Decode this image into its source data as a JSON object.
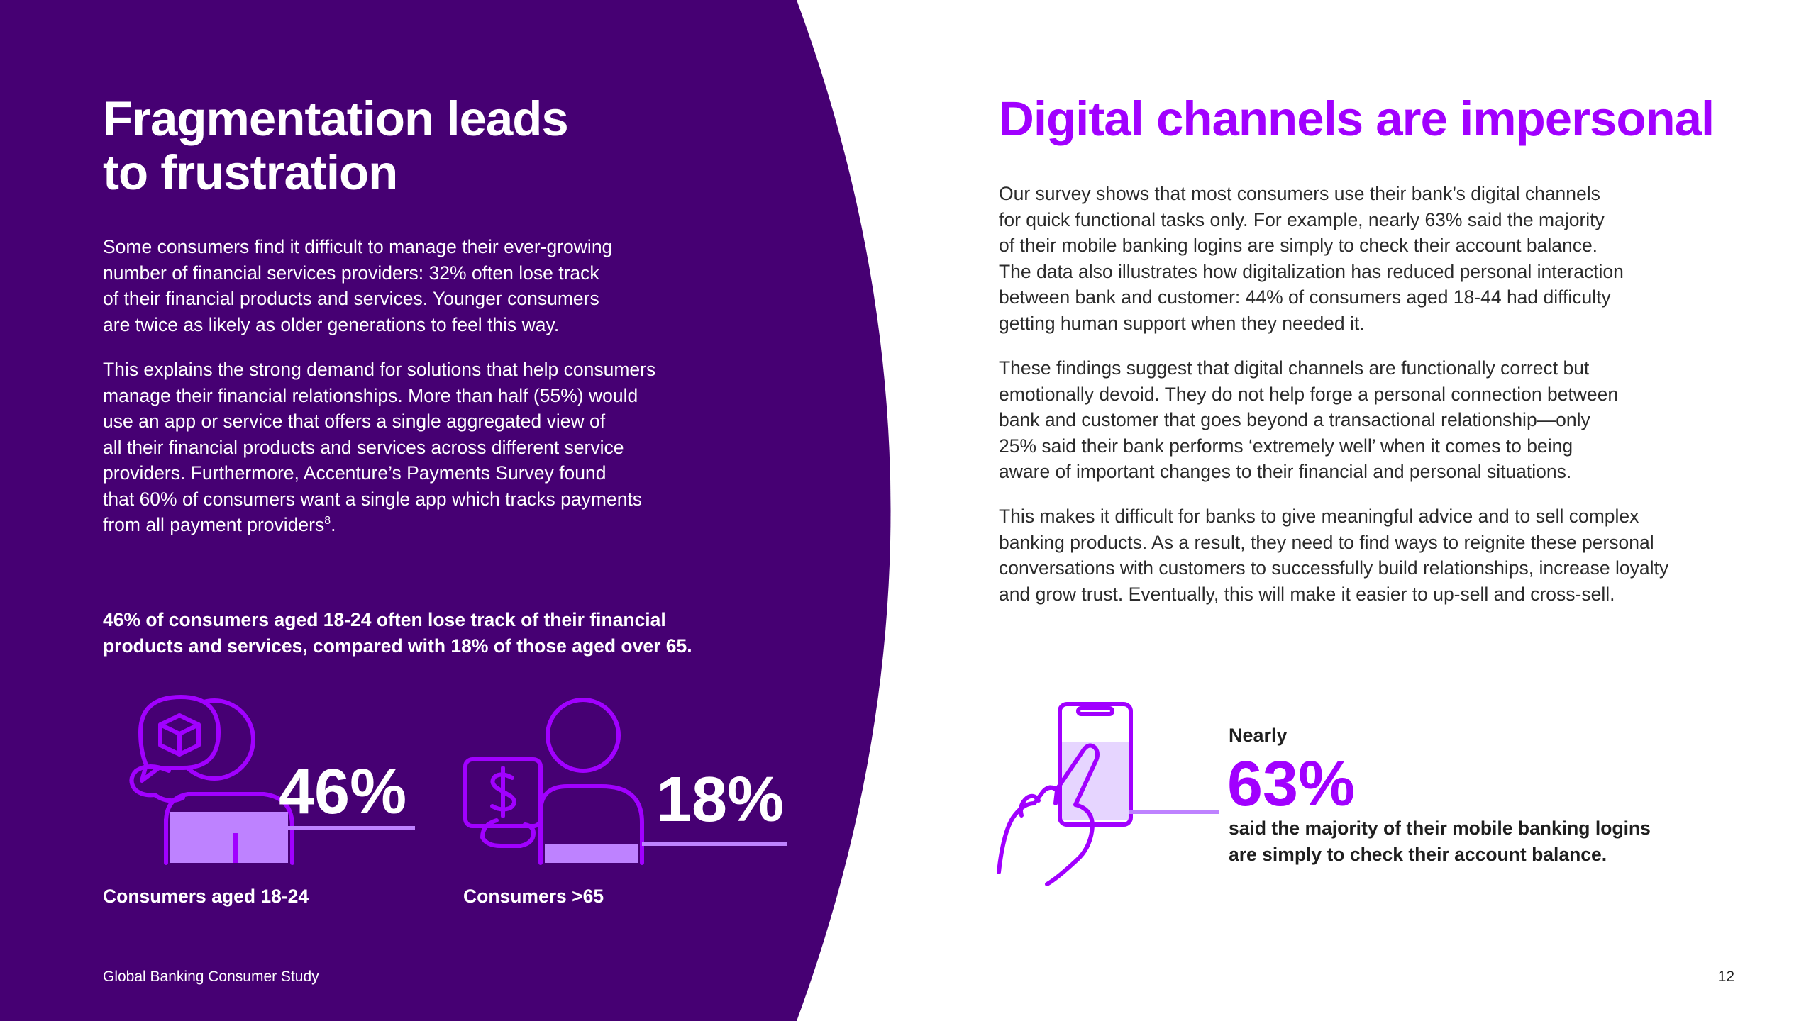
{
  "left": {
    "title_line1": "Fragmentation leads",
    "title_line2": "to frustration",
    "para1_lines": [
      "Some consumers find it difficult to manage their ever-growing",
      "number of financial services providers: 32% often lose track",
      "of their financial products and services. Younger consumers",
      "are twice as likely as older generations to feel this way."
    ],
    "para2_lines": [
      "This explains the strong demand for solutions that help consumers",
      "manage their financial relationships. More than half (55%) would",
      "use an app or service that offers a single aggregated view of",
      "all their financial products and services across different service",
      "providers. Furthermore, Accenture’s Payments Survey found",
      "that 60% of consumers want a single app which tracks payments",
      "from all payment providers"
    ],
    "para2_footnote": "8",
    "para2_end": ".",
    "highlight_lines": [
      "46% of consumers aged 18-24 often lose track of their financial",
      "products and services, compared with 18% of those aged over 65."
    ],
    "stats": [
      {
        "value": "46%",
        "fill_fraction": 0.46,
        "label": "Consumers aged 18-24",
        "icon": "person-with-package-icon"
      },
      {
        "value": "18%",
        "fill_fraction": 0.18,
        "label": "Consumers >65",
        "icon": "person-with-dollar-icon"
      }
    ],
    "footer": "Global Banking Consumer Study"
  },
  "right": {
    "title": "Digital channels are impersonal",
    "para1_lines": [
      "Our survey shows that most consumers use their bank’s digital channels",
      "for quick functional tasks only. For example, nearly 63% said the majority",
      "of their mobile banking logins are simply to check their account balance.",
      "The data also illustrates how digitalization has reduced personal interaction",
      "between bank and customer: 44% of consumers aged 18-44 had difficulty",
      "getting human support when they needed it."
    ],
    "para2_lines": [
      "These findings suggest that digital channels are functionally correct but",
      "emotionally devoid. They do not help forge a personal connection between",
      "bank and customer that goes beyond a transactional relationship—only",
      "25% said their bank performs ‘extremely well’ when it comes to being",
      "aware of important changes to their financial and personal situations."
    ],
    "para3_lines": [
      "This makes it difficult for banks to give meaningful advice and to sell complex",
      "banking products. As a result, they need to find ways to reignite these personal",
      "conversations with customers to successfully build relationships, increase loyalty",
      "and grow trust. Eventually, this will make it easier to up-sell and cross-sell."
    ],
    "stat": {
      "prefix": "Nearly",
      "value": "63%",
      "fill_fraction": 0.63,
      "desc_lines": [
        "said the majority of their mobile banking logins",
        "are simply to check their account balance."
      ],
      "icon": "hand-tapping-phone-icon"
    },
    "page_number": "12"
  },
  "colors": {
    "panel": "#460073",
    "accent": "#a100ff",
    "fill_light": "#be82ff",
    "fill_phone": "#e6d5ff",
    "text_dark": "#1f1f1f"
  }
}
